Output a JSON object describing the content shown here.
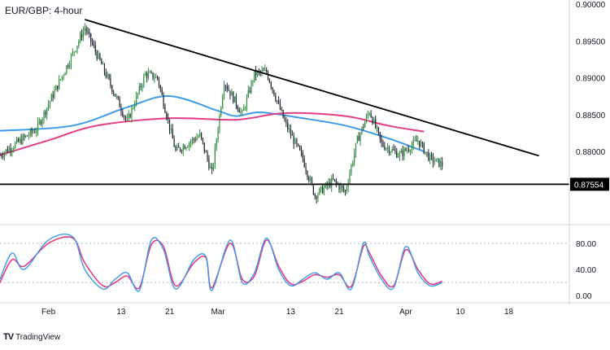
{
  "title": "EUR/GBP: 4-hour",
  "brand": {
    "logo": "TV",
    "name": "TradingView"
  },
  "colors": {
    "up": "#2c8f3a",
    "down": "#1e2430",
    "ma_fast": "#3d9be9",
    "ma_slow": "#e23c82",
    "stoch_k": "#3d9be9",
    "stoch_d": "#e23c82",
    "trendline": "#000000",
    "axis": "#131722",
    "grid": "#b2b5be",
    "price_tag_bg": "#000000",
    "price_tag_text": "#ffffff"
  },
  "chart_data": [
    {
      "type": "candlestick",
      "title": "EUR/GBP: 4-hour",
      "x_ticks": [
        "Feb",
        "13",
        "21",
        "Mar",
        "13",
        "21",
        "Apr",
        "10",
        "18"
      ],
      "y_ticks": [
        "0.90000",
        "0.89500",
        "0.89000",
        "0.88500",
        "0.88000"
      ],
      "ylim": [
        0.8705,
        0.9
      ],
      "price_tag": "0.87554",
      "support_level": 0.87554,
      "trendline": [
        {
          "x": "Feb 07",
          "y": 0.8979
        },
        {
          "x": "Apr 23",
          "y": 0.8794
        }
      ],
      "anchors": [
        {
          "x": "Jan 24",
          "y": 0.8795
        },
        {
          "x": "Jan 30",
          "y": 0.883
        },
        {
          "x": "Feb 04",
          "y": 0.8915
        },
        {
          "x": "Feb 07",
          "y": 0.8968
        },
        {
          "x": "Feb 11",
          "y": 0.8895
        },
        {
          "x": "Feb 14",
          "y": 0.884
        },
        {
          "x": "Feb 17",
          "y": 0.8905
        },
        {
          "x": "Feb 19",
          "y": 0.89
        },
        {
          "x": "Feb 22",
          "y": 0.88
        },
        {
          "x": "Feb 26",
          "y": 0.8822
        },
        {
          "x": "Feb 28",
          "y": 0.877
        },
        {
          "x": "Mar 02",
          "y": 0.8895
        },
        {
          "x": "Mar 05",
          "y": 0.885
        },
        {
          "x": "Mar 07",
          "y": 0.8905
        },
        {
          "x": "Mar 09",
          "y": 0.8908
        },
        {
          "x": "Mar 12",
          "y": 0.884
        },
        {
          "x": "Mar 15",
          "y": 0.879
        },
        {
          "x": "Mar 17",
          "y": 0.874
        },
        {
          "x": "Mar 20",
          "y": 0.876
        },
        {
          "x": "Mar 22",
          "y": 0.8745
        },
        {
          "x": "Mar 24",
          "y": 0.8815
        },
        {
          "x": "Mar 26",
          "y": 0.8855
        },
        {
          "x": "Mar 28",
          "y": 0.881
        },
        {
          "x": "Mar 31",
          "y": 0.8795
        },
        {
          "x": "Apr 03",
          "y": 0.8815
        },
        {
          "x": "Apr 05",
          "y": 0.879
        },
        {
          "x": "Apr 07",
          "y": 0.8782
        }
      ],
      "moving_averages": [
        {
          "color": "#3d9be9",
          "points": [
            {
              "x": "Jan 24",
              "y": 0.8828
            },
            {
              "x": "Feb 05",
              "y": 0.8835
            },
            {
              "x": "Feb 14",
              "y": 0.886
            },
            {
              "x": "Feb 21",
              "y": 0.8875
            },
            {
              "x": "Mar 01",
              "y": 0.8855
            },
            {
              "x": "Mar 04",
              "y": 0.8848
            },
            {
              "x": "Mar 08",
              "y": 0.8853
            },
            {
              "x": "Mar 15",
              "y": 0.8845
            },
            {
              "x": "Mar 22",
              "y": 0.8835
            },
            {
              "x": "Mar 29",
              "y": 0.8818
            },
            {
              "x": "Apr 04",
              "y": 0.88
            }
          ]
        },
        {
          "color": "#e23c82",
          "points": [
            {
              "x": "Jan 24",
              "y": 0.8795
            },
            {
              "x": "Feb 01",
              "y": 0.8815
            },
            {
              "x": "Feb 09",
              "y": 0.8835
            },
            {
              "x": "Feb 21",
              "y": 0.8845
            },
            {
              "x": "Mar 04",
              "y": 0.8843
            },
            {
              "x": "Mar 12",
              "y": 0.8852
            },
            {
              "x": "Mar 22",
              "y": 0.8848
            },
            {
              "x": "Mar 29",
              "y": 0.8835
            },
            {
              "x": "Apr 04",
              "y": 0.8827
            }
          ]
        }
      ]
    },
    {
      "type": "line",
      "y_ticks": [
        "80.00",
        "40.00",
        "0.00"
      ],
      "ylim": [
        -6,
        106
      ],
      "reference_lines": [
        80,
        20
      ],
      "stoch_k": [
        {
          "x": "Jan 24",
          "y": 25
        },
        {
          "x": "Jan 26",
          "y": 65
        },
        {
          "x": "Jan 28",
          "y": 40
        },
        {
          "x": "Feb 01",
          "y": 85
        },
        {
          "x": "Feb 05",
          "y": 90
        },
        {
          "x": "Feb 07",
          "y": 40
        },
        {
          "x": "Feb 10",
          "y": 10
        },
        {
          "x": "Feb 12",
          "y": 25
        },
        {
          "x": "Feb 14",
          "y": 35
        },
        {
          "x": "Feb 16",
          "y": 8
        },
        {
          "x": "Feb 18",
          "y": 85
        },
        {
          "x": "Feb 20",
          "y": 70
        },
        {
          "x": "Feb 22",
          "y": 10
        },
        {
          "x": "Feb 25",
          "y": 55
        },
        {
          "x": "Feb 27",
          "y": 60
        },
        {
          "x": "Feb 28",
          "y": 8
        },
        {
          "x": "Mar 03",
          "y": 85
        },
        {
          "x": "Mar 05",
          "y": 20
        },
        {
          "x": "Mar 07",
          "y": 35
        },
        {
          "x": "Mar 09",
          "y": 88
        },
        {
          "x": "Mar 11",
          "y": 40
        },
        {
          "x": "Mar 13",
          "y": 15
        },
        {
          "x": "Mar 15",
          "y": 25
        },
        {
          "x": "Mar 17",
          "y": 35
        },
        {
          "x": "Mar 19",
          "y": 25
        },
        {
          "x": "Mar 21",
          "y": 35
        },
        {
          "x": "Mar 23",
          "y": 10
        },
        {
          "x": "Mar 25",
          "y": 80
        },
        {
          "x": "Mar 26",
          "y": 60
        },
        {
          "x": "Mar 28",
          "y": 25
        },
        {
          "x": "Mar 30",
          "y": 12
        },
        {
          "x": "Apr 01",
          "y": 75
        },
        {
          "x": "Apr 03",
          "y": 35
        },
        {
          "x": "Apr 05",
          "y": 15
        },
        {
          "x": "Apr 07",
          "y": 20
        }
      ],
      "stoch_d": [
        {
          "x": "Jan 24",
          "y": 20
        },
        {
          "x": "Jan 26",
          "y": 55
        },
        {
          "x": "Jan 28",
          "y": 45
        },
        {
          "x": "Feb 01",
          "y": 80
        },
        {
          "x": "Feb 05",
          "y": 88
        },
        {
          "x": "Feb 07",
          "y": 50
        },
        {
          "x": "Feb 10",
          "y": 15
        },
        {
          "x": "Feb 12",
          "y": 20
        },
        {
          "x": "Feb 14",
          "y": 30
        },
        {
          "x": "Feb 16",
          "y": 12
        },
        {
          "x": "Feb 18",
          "y": 78
        },
        {
          "x": "Feb 20",
          "y": 75
        },
        {
          "x": "Feb 22",
          "y": 15
        },
        {
          "x": "Feb 25",
          "y": 50
        },
        {
          "x": "Feb 27",
          "y": 58
        },
        {
          "x": "Feb 28",
          "y": 12
        },
        {
          "x": "Mar 03",
          "y": 80
        },
        {
          "x": "Mar 05",
          "y": 25
        },
        {
          "x": "Mar 07",
          "y": 30
        },
        {
          "x": "Mar 09",
          "y": 85
        },
        {
          "x": "Mar 11",
          "y": 45
        },
        {
          "x": "Mar 13",
          "y": 18
        },
        {
          "x": "Mar 15",
          "y": 22
        },
        {
          "x": "Mar 17",
          "y": 32
        },
        {
          "x": "Mar 19",
          "y": 28
        },
        {
          "x": "Mar 21",
          "y": 32
        },
        {
          "x": "Mar 23",
          "y": 14
        },
        {
          "x": "Mar 25",
          "y": 75
        },
        {
          "x": "Mar 26",
          "y": 65
        },
        {
          "x": "Mar 28",
          "y": 30
        },
        {
          "x": "Mar 30",
          "y": 15
        },
        {
          "x": "Apr 01",
          "y": 70
        },
        {
          "x": "Apr 03",
          "y": 40
        },
        {
          "x": "Apr 05",
          "y": 18
        },
        {
          "x": "Apr 07",
          "y": 22
        }
      ]
    }
  ]
}
